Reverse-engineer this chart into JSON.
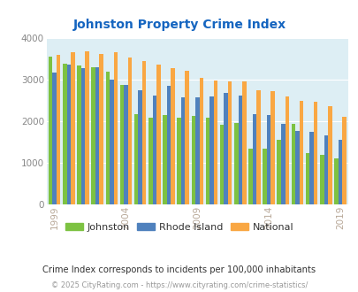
{
  "title": "Johnston Property Crime Index",
  "years": [
    1999,
    2000,
    2001,
    2002,
    2003,
    2004,
    2005,
    2006,
    2007,
    2008,
    2009,
    2010,
    2011,
    2012,
    2013,
    2014,
    2015,
    2016,
    2017,
    2018,
    2019
  ],
  "johnston": [
    3550,
    3380,
    3340,
    3300,
    3190,
    2870,
    2160,
    2090,
    2150,
    2090,
    2130,
    2080,
    1910,
    1950,
    1330,
    1350,
    1560,
    1940,
    1240,
    1200,
    1110
  ],
  "rhode_island": [
    3170,
    3360,
    3270,
    3300,
    2990,
    2880,
    2750,
    2610,
    2850,
    2580,
    2570,
    2600,
    2680,
    2620,
    2160,
    2150,
    1940,
    1760,
    1750,
    1650,
    1550
  ],
  "national": [
    3590,
    3650,
    3680,
    3610,
    3650,
    3520,
    3440,
    3350,
    3280,
    3220,
    3040,
    2970,
    2960,
    2950,
    2750,
    2720,
    2600,
    2490,
    2460,
    2370,
    2100
  ],
  "johnston_color": "#7dc242",
  "rhode_island_color": "#4f81bd",
  "national_color": "#f9a743",
  "bg_color": "#ddeef4",
  "plot_bg": "#ddeef4",
  "ylim": [
    0,
    4000
  ],
  "ylabel_ticks": [
    0,
    1000,
    2000,
    3000,
    4000
  ],
  "xtick_years": [
    1999,
    2004,
    2009,
    2014,
    2019
  ],
  "subtitle": "Crime Index corresponds to incidents per 100,000 inhabitants",
  "footer": "© 2025 CityRating.com - https://www.cityrating.com/crime-statistics/",
  "title_color": "#1565c0",
  "xtick_color": "#b8a898",
  "ytick_color": "#888888",
  "subtitle_color": "#333333",
  "footer_color": "#999999",
  "bar_width": 0.28,
  "fig_width": 4.06,
  "fig_height": 3.3,
  "dpi": 100
}
